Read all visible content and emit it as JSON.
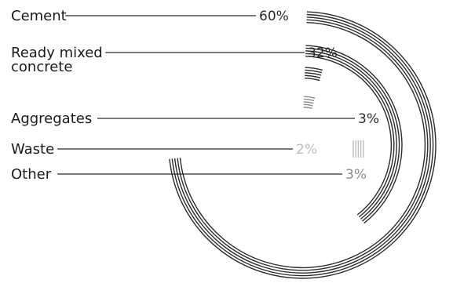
{
  "chart_data": {
    "type": "radial-bar",
    "title": "",
    "categories": [
      {
        "label": "Cement",
        "label_lines": [
          "Cement"
        ],
        "value": 60,
        "value_label": "60%",
        "color": "#2b2b2b"
      },
      {
        "label": "Ready mixed concrete",
        "label_lines": [
          "Ready mixed",
          "concrete"
        ],
        "value": 32,
        "value_label": "32%",
        "color": "#2b2b2b"
      },
      {
        "label": "Aggregates",
        "label_lines": [
          "Aggregates"
        ],
        "value": 3,
        "value_label": "3%",
        "color": "#2b2b2b"
      },
      {
        "label": "Waste",
        "label_lines": [
          "Waste"
        ],
        "value": 2,
        "value_label": "2%",
        "color": "#bdbdbd"
      },
      {
        "label": "Other",
        "label_lines": [
          "Other"
        ],
        "value": 3,
        "value_label": "3%",
        "color": "#8a8a8a"
      }
    ],
    "colors": {
      "label_text": "#1a1a1a",
      "leader_line": "#2b2b2b",
      "background": "#ffffff"
    }
  }
}
